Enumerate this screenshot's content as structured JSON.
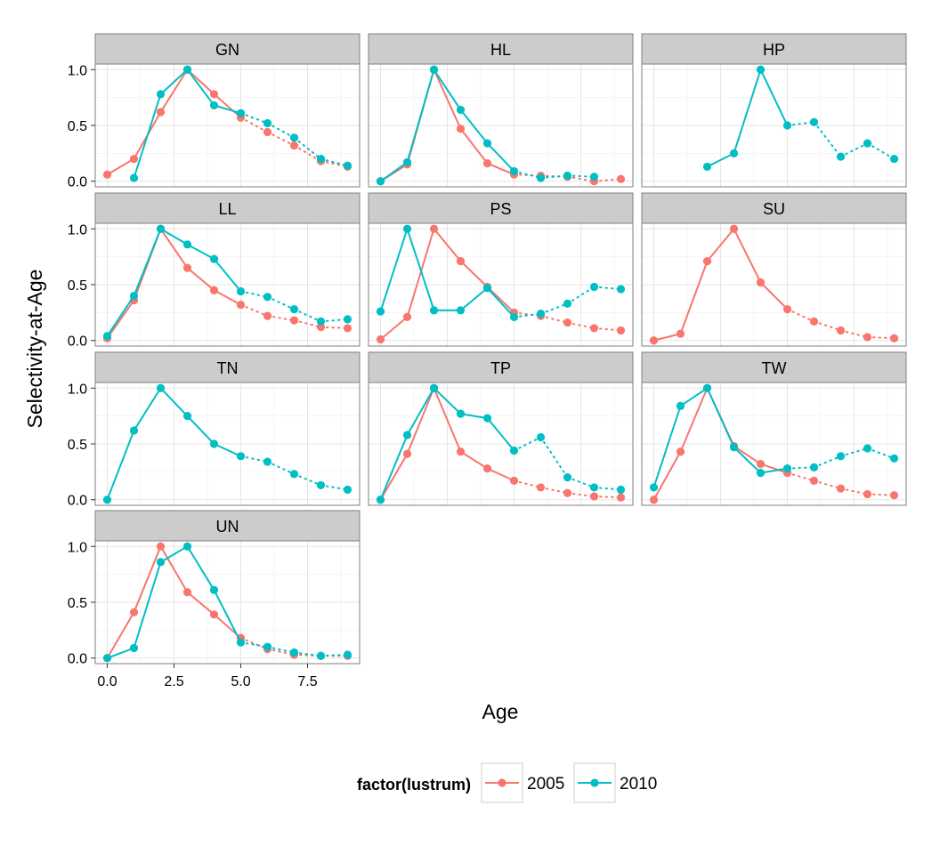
{
  "chart_data": {
    "type": "line",
    "xlabel": "Age",
    "ylabel": "Selectivity-at-Age",
    "xlim": [
      -0.45,
      9.45
    ],
    "ylim": [
      -0.05,
      1.05
    ],
    "x_ticks": [
      {
        "value": 0,
        "label": "0.0"
      },
      {
        "value": 2.5,
        "label": "2.5"
      },
      {
        "value": 5,
        "label": "5.0"
      },
      {
        "value": 7.5,
        "label": "7.5"
      }
    ],
    "y_ticks": [
      {
        "value": 0,
        "label": "0.0"
      },
      {
        "value": 0.5,
        "label": "0.5"
      },
      {
        "value": 1,
        "label": "1.0"
      }
    ],
    "grid": true,
    "legend": {
      "title": "factor(lustrum)",
      "position": "bottom",
      "entries": [
        {
          "label": "2005",
          "color": "#F8766D"
        },
        {
          "label": "2010",
          "color": "#00BFC4"
        }
      ]
    },
    "line_style_note": "solid up to age 5, dotted beyond",
    "panels": [
      {
        "name": "GN",
        "series": [
          {
            "name": "2005",
            "color": "#F8766D",
            "x": [
              0,
              1,
              2,
              3,
              4,
              5,
              6,
              7,
              8,
              9
            ],
            "y": [
              0.06,
              0.2,
              0.62,
              1.0,
              0.78,
              0.57,
              0.44,
              0.32,
              0.18,
              0.13
            ]
          },
          {
            "name": "2010",
            "color": "#00BFC4",
            "x": [
              1,
              2,
              3,
              4,
              5,
              6,
              7,
              8,
              9
            ],
            "y": [
              0.03,
              0.78,
              1.0,
              0.68,
              0.61,
              0.52,
              0.39,
              0.2,
              0.14
            ]
          }
        ]
      },
      {
        "name": "HL",
        "series": [
          {
            "name": "2005",
            "color": "#F8766D",
            "x": [
              0,
              1,
              2,
              3,
              4,
              5,
              6,
              7,
              8,
              9
            ],
            "y": [
              0.0,
              0.15,
              1.0,
              0.47,
              0.16,
              0.06,
              0.05,
              0.04,
              0.0,
              0.02
            ]
          },
          {
            "name": "2010",
            "color": "#00BFC4",
            "x": [
              0,
              1,
              2,
              3,
              4,
              5,
              6,
              7,
              8
            ],
            "y": [
              0.0,
              0.17,
              1.0,
              0.64,
              0.34,
              0.09,
              0.03,
              0.05,
              0.04
            ]
          }
        ]
      },
      {
        "name": "HP",
        "series": [
          {
            "name": "2010",
            "color": "#00BFC4",
            "x": [
              2,
              3,
              4,
              5,
              6,
              7,
              8,
              9
            ],
            "y": [
              0.13,
              0.25,
              1.0,
              0.5,
              0.53,
              0.22,
              0.34,
              0.2
            ]
          }
        ]
      },
      {
        "name": "LL",
        "series": [
          {
            "name": "2005",
            "color": "#F8766D",
            "x": [
              0,
              1,
              2,
              3,
              4,
              5,
              6,
              7,
              8,
              9
            ],
            "y": [
              0.02,
              0.36,
              1.0,
              0.65,
              0.45,
              0.32,
              0.22,
              0.18,
              0.12,
              0.11
            ]
          },
          {
            "name": "2010",
            "color": "#00BFC4",
            "x": [
              0,
              1,
              2,
              3,
              4,
              5,
              6,
              7,
              8,
              9
            ],
            "y": [
              0.04,
              0.4,
              1.0,
              0.86,
              0.73,
              0.44,
              0.39,
              0.28,
              0.17,
              0.19
            ]
          }
        ]
      },
      {
        "name": "PS",
        "series": [
          {
            "name": "2005",
            "color": "#F8766D",
            "x": [
              0,
              1,
              2,
              3,
              4,
              5,
              6,
              7,
              8,
              9
            ],
            "y": [
              0.01,
              0.21,
              1.0,
              0.71,
              0.48,
              0.25,
              0.22,
              0.16,
              0.11,
              0.09
            ]
          },
          {
            "name": "2010",
            "color": "#00BFC4",
            "x": [
              0,
              1,
              2,
              3,
              4,
              5,
              6,
              7,
              8,
              9
            ],
            "y": [
              0.26,
              1.0,
              0.27,
              0.27,
              0.47,
              0.21,
              0.24,
              0.33,
              0.48,
              0.46
            ]
          }
        ]
      },
      {
        "name": "SU",
        "series": [
          {
            "name": "2005",
            "color": "#F8766D",
            "x": [
              0,
              1,
              2,
              3,
              4,
              5,
              6,
              7,
              8,
              9
            ],
            "y": [
              0.0,
              0.06,
              0.71,
              1.0,
              0.52,
              0.28,
              0.17,
              0.09,
              0.03,
              0.02
            ]
          }
        ]
      },
      {
        "name": "TN",
        "series": [
          {
            "name": "2010",
            "color": "#00BFC4",
            "x": [
              0,
              1,
              2,
              3,
              4,
              5,
              6,
              7,
              8,
              9
            ],
            "y": [
              0.0,
              0.62,
              1.0,
              0.75,
              0.5,
              0.39,
              0.34,
              0.23,
              0.13,
              0.09
            ]
          }
        ]
      },
      {
        "name": "TP",
        "series": [
          {
            "name": "2005",
            "color": "#F8766D",
            "x": [
              0,
              1,
              2,
              3,
              4,
              5,
              6,
              7,
              8,
              9
            ],
            "y": [
              0.0,
              0.41,
              1.0,
              0.43,
              0.28,
              0.17,
              0.11,
              0.06,
              0.03,
              0.02
            ]
          },
          {
            "name": "2010",
            "color": "#00BFC4",
            "x": [
              0,
              1,
              2,
              3,
              4,
              5,
              6,
              7,
              8,
              9
            ],
            "y": [
              0.0,
              0.58,
              1.0,
              0.77,
              0.73,
              0.44,
              0.56,
              0.2,
              0.11,
              0.09
            ]
          }
        ]
      },
      {
        "name": "TW",
        "series": [
          {
            "name": "2005",
            "color": "#F8766D",
            "x": [
              0,
              1,
              2,
              3,
              4,
              5,
              6,
              7,
              8,
              9
            ],
            "y": [
              0.0,
              0.43,
              1.0,
              0.48,
              0.32,
              0.24,
              0.17,
              0.1,
              0.05,
              0.04
            ]
          },
          {
            "name": "2010",
            "color": "#00BFC4",
            "x": [
              0,
              1,
              2,
              3,
              4,
              5,
              6,
              7,
              8,
              9
            ],
            "y": [
              0.11,
              0.84,
              1.0,
              0.47,
              0.24,
              0.28,
              0.29,
              0.39,
              0.46,
              0.37
            ]
          }
        ]
      },
      {
        "name": "UN",
        "series": [
          {
            "name": "2005",
            "color": "#F8766D",
            "x": [
              0,
              1,
              2,
              3,
              4,
              5,
              6,
              7,
              8,
              9
            ],
            "y": [
              0.0,
              0.41,
              1.0,
              0.59,
              0.39,
              0.18,
              0.08,
              0.03,
              0.02,
              0.02
            ]
          },
          {
            "name": "2010",
            "color": "#00BFC4",
            "x": [
              0,
              1,
              2,
              3,
              4,
              5,
              6,
              7,
              8,
              9
            ],
            "y": [
              0.0,
              0.09,
              0.86,
              1.0,
              0.61,
              0.14,
              0.1,
              0.05,
              0.02,
              0.03
            ]
          }
        ]
      }
    ]
  }
}
